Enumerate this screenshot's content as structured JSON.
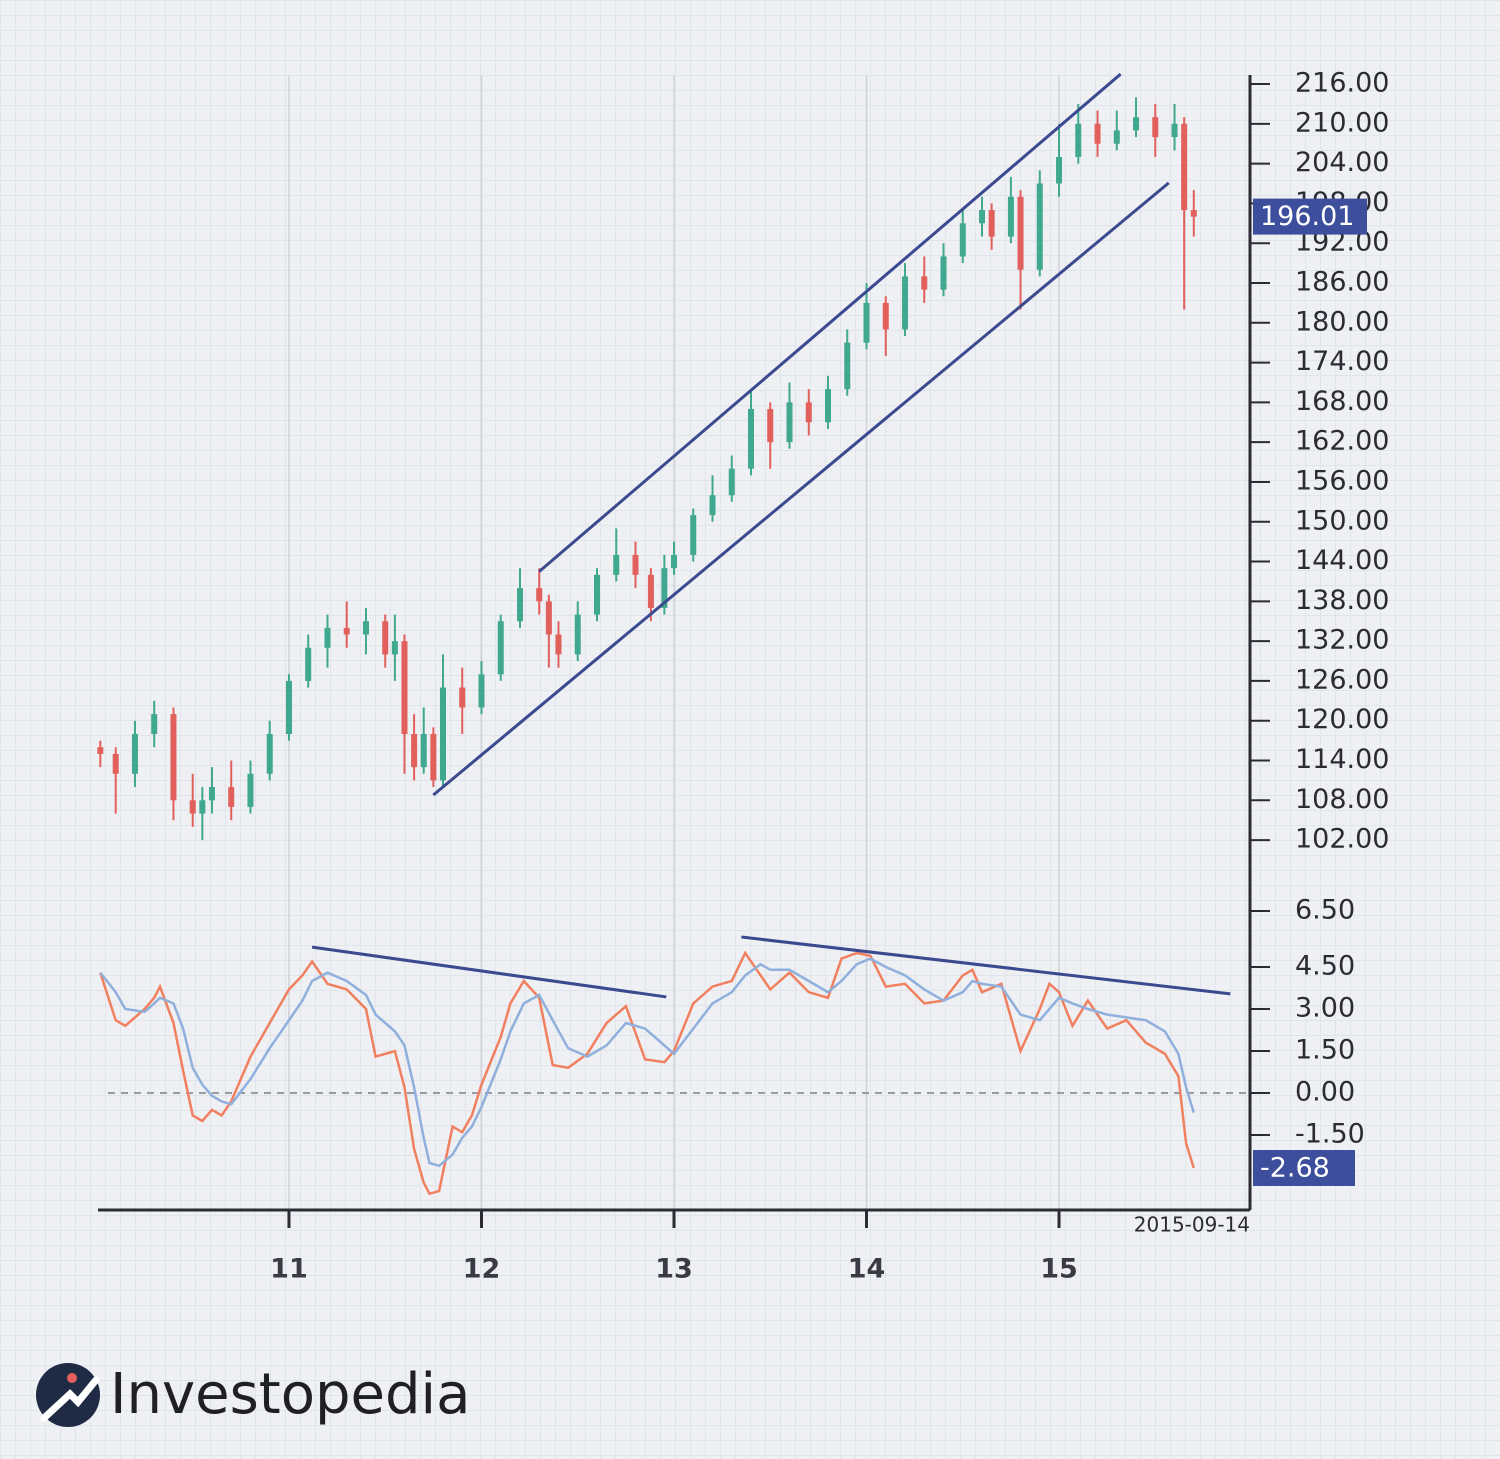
{
  "brand": "Investopedia",
  "chart_data": [
    {
      "type": "candlestick",
      "x": [
        10.02,
        10.1,
        10.2,
        10.3,
        10.4,
        10.5,
        10.55,
        10.6,
        10.7,
        10.8,
        10.9,
        11.0,
        11.1,
        11.2,
        11.3,
        11.4,
        11.5,
        11.55,
        11.6,
        11.65,
        11.7,
        11.75,
        11.8,
        11.9,
        12.0,
        12.1,
        12.2,
        12.3,
        12.35,
        12.4,
        12.5,
        12.6,
        12.7,
        12.8,
        12.88,
        12.95,
        13.0,
        13.1,
        13.2,
        13.3,
        13.4,
        13.5,
        13.6,
        13.7,
        13.8,
        13.9,
        14.0,
        14.1,
        14.2,
        14.3,
        14.4,
        14.5,
        14.6,
        14.65,
        14.75,
        14.8,
        14.9,
        15.0,
        15.1,
        15.2,
        15.3,
        15.4,
        15.5,
        15.6,
        15.65,
        15.7
      ],
      "open": [
        116,
        115,
        112,
        118,
        121,
        108,
        106,
        108,
        110,
        107,
        112,
        118,
        126,
        131,
        134,
        133,
        135,
        130,
        132,
        118,
        113,
        118,
        111,
        125,
        122,
        127,
        135,
        140,
        138,
        133,
        130,
        136,
        142,
        145,
        142,
        137,
        143,
        145,
        151,
        154,
        158,
        167,
        162,
        168,
        165,
        170,
        177,
        183,
        179,
        187,
        185,
        190,
        195,
        197,
        193,
        199,
        188,
        201,
        205,
        210,
        207,
        209,
        211,
        208,
        210,
        197
      ],
      "high": [
        117,
        116,
        120,
        123,
        122,
        112,
        110,
        113,
        114,
        114,
        120,
        127,
        133,
        136,
        138,
        137,
        136,
        136,
        133,
        121,
        122,
        119,
        130,
        128,
        129,
        136,
        143,
        143,
        139,
        135,
        138,
        143,
        149,
        147,
        143,
        145,
        147,
        152,
        157,
        160,
        170,
        168,
        171,
        170,
        172,
        179,
        186,
        184,
        189,
        190,
        192,
        197,
        199,
        198,
        202,
        200,
        203,
        210,
        213,
        212,
        212,
        214,
        213,
        213,
        211,
        200
      ],
      "low": [
        113,
        106,
        110,
        116,
        105,
        104,
        102,
        106,
        105,
        106,
        111,
        117,
        125,
        128,
        131,
        130,
        128,
        126,
        112,
        111,
        112,
        110,
        110,
        118,
        121,
        126,
        134,
        136,
        128,
        128,
        129,
        135,
        141,
        140,
        135,
        136,
        142,
        144,
        150,
        153,
        157,
        158,
        161,
        163,
        164,
        169,
        176,
        175,
        178,
        183,
        184,
        189,
        193,
        191,
        192,
        182,
        187,
        199,
        204,
        205,
        206,
        208,
        205,
        206,
        182,
        193
      ],
      "close": [
        115,
        112,
        118,
        121,
        108,
        106,
        108,
        110,
        107,
        112,
        118,
        126,
        131,
        134,
        133,
        135,
        130,
        132,
        118,
        113,
        118,
        111,
        125,
        122,
        127,
        135,
        140,
        138,
        133,
        130,
        136,
        142,
        145,
        142,
        137,
        143,
        145,
        151,
        154,
        158,
        167,
        162,
        168,
        165,
        170,
        177,
        183,
        179,
        187,
        185,
        190,
        195,
        197,
        193,
        199,
        188,
        201,
        205,
        210,
        207,
        209,
        211,
        208,
        210,
        197,
        196
      ],
      "up_color": "#3fa88e",
      "down_color": "#e2605b",
      "xlim": [
        10.008,
        15.992
      ],
      "ylim": [
        99.0,
        217.36
      ],
      "yticks": [
        {
          "value": 216,
          "label": "216.00"
        },
        {
          "value": 210,
          "label": "210.00"
        },
        {
          "value": 204,
          "label": "204.00"
        },
        {
          "value": 198,
          "label": "198.00"
        },
        {
          "value": 192,
          "label": "192.00"
        },
        {
          "value": 186,
          "label": "186.00"
        },
        {
          "value": 180,
          "label": "180.00"
        },
        {
          "value": 174,
          "label": "174.00"
        },
        {
          "value": 168,
          "label": "168.00"
        },
        {
          "value": 162,
          "label": "162.00"
        },
        {
          "value": 156,
          "label": "156.00"
        },
        {
          "value": 150,
          "label": "150.00"
        },
        {
          "value": 144,
          "label": "144.00"
        },
        {
          "value": 138,
          "label": "138.00"
        },
        {
          "value": 132,
          "label": "132.00"
        },
        {
          "value": 126,
          "label": "126.00"
        },
        {
          "value": 120,
          "label": "120.00"
        },
        {
          "value": 114,
          "label": "114.00"
        },
        {
          "value": 108,
          "label": "108.00"
        },
        {
          "value": 102,
          "label": "102.00"
        }
      ],
      "last_value": 196.01,
      "lines": [
        {
          "color": "#3b4a8f",
          "x": [
            12.3,
            15.32
          ],
          "y": [
            142.5,
            217.5
          ]
        },
        {
          "color": "#3b4a8f",
          "x": [
            11.75,
            15.57
          ],
          "y": [
            108.8,
            201.1
          ]
        }
      ]
    },
    {
      "type": "line",
      "x": [
        10.02,
        10.1,
        10.15,
        10.25,
        10.3,
        10.33,
        10.4,
        10.45,
        10.5,
        10.55,
        10.6,
        10.65,
        10.7,
        10.8,
        10.9,
        11.0,
        11.07,
        11.12,
        11.2,
        11.3,
        11.4,
        11.45,
        11.55,
        11.6,
        11.65,
        11.7,
        11.73,
        11.78,
        11.85,
        11.9,
        11.95,
        12.0,
        12.1,
        12.15,
        12.22,
        12.3,
        12.37,
        12.45,
        12.55,
        12.65,
        12.75,
        12.85,
        12.95,
        13.0,
        13.1,
        13.2,
        13.3,
        13.37,
        13.45,
        13.5,
        13.6,
        13.7,
        13.8,
        13.87,
        13.95,
        14.02,
        14.1,
        14.2,
        14.3,
        14.4,
        14.5,
        14.55,
        14.6,
        14.7,
        14.8,
        14.9,
        14.95,
        15.0,
        15.07,
        15.15,
        15.25,
        15.35,
        15.45,
        15.55,
        15.62,
        15.66,
        15.7
      ],
      "series": [
        {
          "color": "#f0805f",
          "values": [
            4.3,
            2.6,
            2.4,
            3.0,
            3.4,
            3.8,
            2.5,
            0.8,
            -0.8,
            -1.0,
            -0.6,
            -0.8,
            -0.3,
            1.3,
            2.5,
            3.7,
            4.2,
            4.7,
            3.9,
            3.7,
            3.0,
            1.3,
            1.5,
            0.2,
            -2.0,
            -3.2,
            -3.6,
            -3.5,
            -1.2,
            -1.4,
            -0.8,
            0.3,
            2.0,
            3.2,
            4.0,
            3.4,
            1.0,
            0.9,
            1.4,
            2.5,
            3.1,
            1.2,
            1.1,
            1.5,
            3.2,
            3.8,
            4.0,
            5.0,
            4.2,
            3.7,
            4.3,
            3.6,
            3.4,
            4.8,
            5.0,
            4.9,
            3.8,
            3.9,
            3.2,
            3.3,
            4.2,
            4.4,
            3.6,
            3.9,
            1.5,
            3.0,
            3.9,
            3.6,
            2.4,
            3.3,
            2.3,
            2.6,
            1.8,
            1.4,
            0.6,
            -1.8,
            -2.68
          ]
        },
        {
          "color": "#8fb0dc",
          "values": [
            4.3,
            3.6,
            3.0,
            2.9,
            3.2,
            3.4,
            3.2,
            2.3,
            0.9,
            0.3,
            -0.1,
            -0.3,
            -0.4,
            0.5,
            1.6,
            2.6,
            3.3,
            4.0,
            4.3,
            4.0,
            3.5,
            2.8,
            2.2,
            1.7,
            0.2,
            -1.6,
            -2.5,
            -2.6,
            -2.2,
            -1.6,
            -1.2,
            -0.5,
            1.2,
            2.2,
            3.2,
            3.5,
            2.6,
            1.6,
            1.3,
            1.7,
            2.5,
            2.3,
            1.7,
            1.4,
            2.3,
            3.2,
            3.6,
            4.2,
            4.6,
            4.4,
            4.4,
            4.0,
            3.6,
            4.0,
            4.6,
            4.8,
            4.5,
            4.2,
            3.7,
            3.3,
            3.6,
            4.0,
            3.9,
            3.8,
            2.8,
            2.6,
            3.0,
            3.4,
            3.2,
            3.0,
            2.8,
            2.7,
            2.6,
            2.2,
            1.4,
            0.2,
            -0.7
          ]
        }
      ],
      "xlim": [
        10.008,
        15.992
      ],
      "xticks": [
        11,
        12,
        13,
        14,
        15
      ],
      "grid": true,
      "ylim": [
        -4.18,
        7.25
      ],
      "yticks": [
        {
          "value": 6.5,
          "label": "6.50"
        },
        {
          "value": 4.5,
          "label": "4.50"
        },
        {
          "value": 3.0,
          "label": "3.00"
        },
        {
          "value": 1.5,
          "label": "1.50"
        },
        {
          "value": 0,
          "label": "0.00"
        },
        {
          "value": -1.5,
          "label": "-1.50"
        }
      ],
      "hline": 0,
      "last_value": -2.68,
      "x_end_label": "2015-09-14",
      "lines": [
        {
          "color": "#3b4a8f",
          "x": [
            11.12,
            12.96
          ],
          "y": [
            5.21,
            3.43
          ]
        },
        {
          "color": "#3b4a8f",
          "x": [
            13.35,
            15.89
          ],
          "y": [
            5.57,
            3.54
          ]
        }
      ]
    }
  ]
}
